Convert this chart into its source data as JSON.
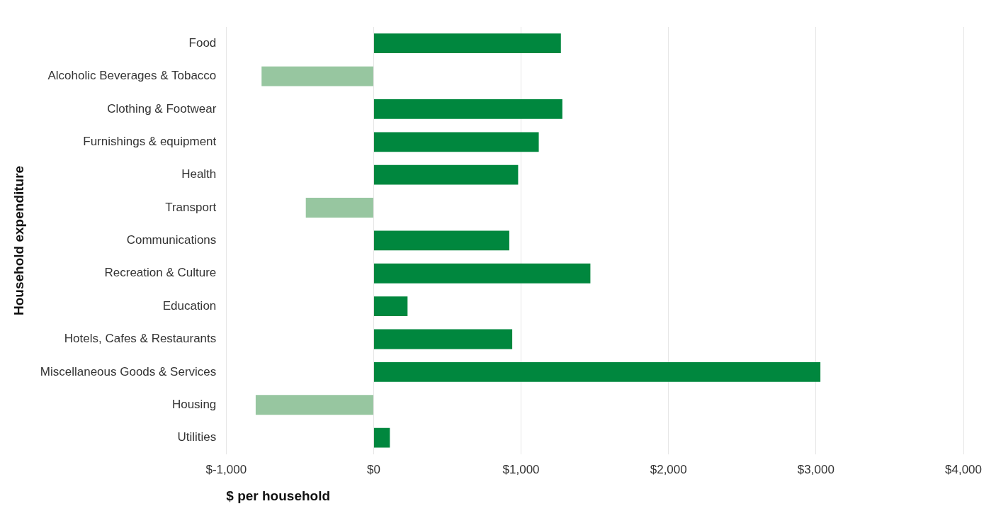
{
  "chart_data": {
    "type": "bar",
    "orientation": "horizontal",
    "xlabel": "$ per household",
    "ylabel": "Household expenditure",
    "categories": [
      "Food",
      "Alcoholic Beverages & Tobacco",
      "Clothing & Footwear",
      "Furnishings & equipment",
      "Health",
      "Transport",
      "Communications",
      "Recreation & Culture",
      "Education",
      "Hotels, Cafes & Restaurants",
      "Miscellaneous Goods & Services",
      "Housing",
      "Utilities"
    ],
    "values": [
      1270,
      -760,
      1280,
      1120,
      980,
      -460,
      920,
      1470,
      230,
      940,
      3030,
      -800,
      110
    ],
    "colors": [
      "#00873e",
      "#97c6a0",
      "#00873e",
      "#00873e",
      "#00873e",
      "#97c6a0",
      "#00873e",
      "#00873e",
      "#00873e",
      "#00873e",
      "#00873e",
      "#97c6a0",
      "#00873e"
    ],
    "xlim": [
      -1000,
      4000
    ],
    "xticks": [
      {
        "value": -1000,
        "label": "$-1,000"
      },
      {
        "value": 0,
        "label": "$0"
      },
      {
        "value": 1000,
        "label": "$1,000"
      },
      {
        "value": 2000,
        "label": "$2,000"
      },
      {
        "value": 3000,
        "label": "$3,000"
      },
      {
        "value": 4000,
        "label": "$4,000"
      }
    ],
    "grid": "x"
  }
}
